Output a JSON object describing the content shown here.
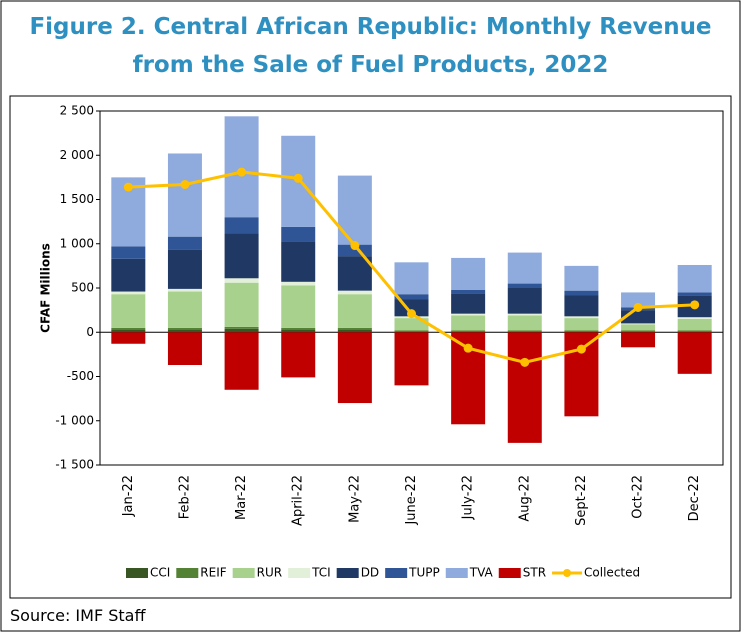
{
  "chart_data": {
    "type": "bar",
    "title": "Figure 2.  Central African Republic: Monthly Revenue from the Sale of Fuel Products, 2022",
    "y_label": "CFAF Millions",
    "source": "Source: IMF Staff",
    "categories": [
      "Jan-22",
      "Feb-22",
      "Mar-22",
      "April-22",
      "May-22",
      "June-22",
      "July-22",
      "Aug-22",
      "Sept-22",
      "Oct-22",
      "Dec-22"
    ],
    "stacked": true,
    "series": [
      {
        "name": "CCI",
        "color": "#375623",
        "values": [
          30,
          30,
          40,
          30,
          30,
          10,
          10,
          10,
          10,
          10,
          10
        ]
      },
      {
        "name": "REIF",
        "color": "#548235",
        "values": [
          20,
          20,
          20,
          20,
          20,
          10,
          10,
          10,
          10,
          10,
          10
        ]
      },
      {
        "name": "RUR",
        "color": "#a9d18e",
        "values": [
          380,
          410,
          500,
          480,
          380,
          140,
          170,
          170,
          140,
          70,
          130
        ]
      },
      {
        "name": "TCI",
        "color": "#e2f0d9",
        "values": [
          30,
          30,
          50,
          40,
          40,
          20,
          20,
          20,
          20,
          10,
          20
        ]
      },
      {
        "name": "DD",
        "color": "#1f3864",
        "values": [
          370,
          440,
          510,
          450,
          390,
          190,
          230,
          290,
          240,
          150,
          240
        ]
      },
      {
        "name": "TUPP",
        "color": "#2f5597",
        "values": [
          140,
          150,
          180,
          170,
          130,
          60,
          40,
          50,
          50,
          30,
          40
        ]
      },
      {
        "name": "TVA",
        "color": "#8faadc",
        "values": [
          780,
          940,
          1140,
          1030,
          780,
          360,
          360,
          350,
          280,
          170,
          310
        ]
      },
      {
        "name": "STR",
        "color": "#c00000",
        "values": [
          -130,
          -370,
          -650,
          -510,
          -800,
          -600,
          -1040,
          -1250,
          -950,
          -170,
          -470
        ]
      },
      {
        "name": "Collected",
        "type": "line",
        "color": "#ffc000",
        "values": [
          1640,
          1670,
          1810,
          1740,
          980,
          210,
          -180,
          -340,
          -190,
          280,
          310
        ]
      }
    ],
    "ylim": [
      -1500,
      2500
    ],
    "yticks": [
      {
        "value": -1500,
        "label": "-1 500"
      },
      {
        "value": -1000,
        "label": "-1 000"
      },
      -500,
      0,
      500,
      {
        "value": 1000,
        "label": "1 000"
      },
      {
        "value": 1500,
        "label": "1 500"
      },
      {
        "value": 2000,
        "label": "2 000"
      },
      {
        "value": 2500,
        "label": "2 500"
      }
    ],
    "legend": "bottom"
  }
}
